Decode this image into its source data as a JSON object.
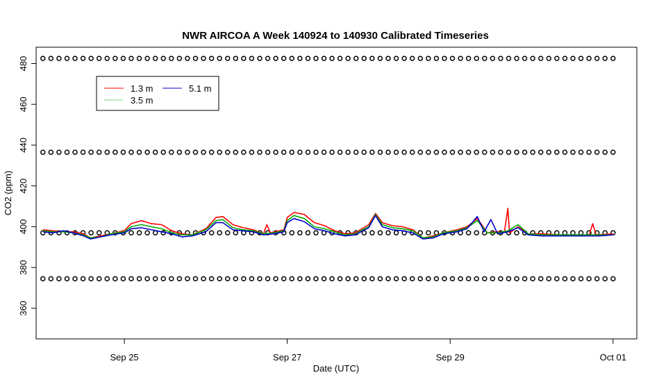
{
  "chart_data": {
    "type": "line",
    "title": "NWR AIRCOA A  Week 140924 to 140930  Calibrated Timeseries",
    "xlabel": "Date (UTC)",
    "ylabel": "CO2 (ppm)",
    "xlim": [
      "2014-09-23T22:00",
      "2014-10-01T07:00"
    ],
    "ylim": [
      345,
      488
    ],
    "x_ticks": [
      {
        "x": "2014-09-25",
        "label": "Sep 25"
      },
      {
        "x": "2014-09-27",
        "label": "Sep 27"
      },
      {
        "x": "2014-09-29",
        "label": "Sep 29"
      },
      {
        "x": "2014-10-01",
        "label": "Oct 01"
      }
    ],
    "y_ticks": [
      360,
      380,
      400,
      420,
      440,
      460,
      480
    ],
    "legend": {
      "placement": "top-left",
      "entries": [
        {
          "label": "1.3 m",
          "color": "#ff0000"
        },
        {
          "label": "5.1 m",
          "color": "#0000cc"
        },
        {
          "label": "3.5 m",
          "color": "#00aa00"
        }
      ]
    },
    "series": [
      {
        "name": "1.3 m",
        "color": "#ff0000",
        "points": [
          [
            "2014-09-24T00:00",
            398.5
          ],
          [
            "2014-09-24T03:00",
            398.0
          ],
          [
            "2014-09-24T06:00",
            397.5
          ],
          [
            "2014-09-24T09:00",
            397.5
          ],
          [
            "2014-09-24T12:00",
            396.5
          ],
          [
            "2014-09-24T14:00",
            394.5
          ],
          [
            "2014-09-24T17:00",
            395.5
          ],
          [
            "2014-09-24T20:00",
            396.5
          ],
          [
            "2014-09-25T00:00",
            398.0
          ],
          [
            "2014-09-25T02:00",
            401.5
          ],
          [
            "2014-09-25T05:00",
            403.0
          ],
          [
            "2014-09-25T08:00",
            401.5
          ],
          [
            "2014-09-25T11:00",
            401.0
          ],
          [
            "2014-09-25T14:00",
            398.0
          ],
          [
            "2014-09-25T17:00",
            396.5
          ],
          [
            "2014-09-25T20:00",
            396.0
          ],
          [
            "2014-09-26T00:00",
            399.0
          ],
          [
            "2014-09-26T03:00",
            404.5
          ],
          [
            "2014-09-26T05:00",
            405.0
          ],
          [
            "2014-09-26T08:00",
            401.0
          ],
          [
            "2014-09-26T11:00",
            399.5
          ],
          [
            "2014-09-26T14:00",
            398.5
          ],
          [
            "2014-09-26T17:00",
            396.5
          ],
          [
            "2014-09-26T18:00",
            401.0
          ],
          [
            "2014-09-26T19:00",
            397.0
          ],
          [
            "2014-09-26T23:00",
            398.5
          ],
          [
            "2014-09-27T00:00",
            404.5
          ],
          [
            "2014-09-27T02:00",
            407.0
          ],
          [
            "2014-09-27T05:00",
            406.0
          ],
          [
            "2014-09-27T08:00",
            402.0
          ],
          [
            "2014-09-27T11:00",
            400.5
          ],
          [
            "2014-09-27T14:00",
            398.0
          ],
          [
            "2014-09-27T17:00",
            396.5
          ],
          [
            "2014-09-27T20:00",
            397.0
          ],
          [
            "2014-09-28T00:00",
            401.0
          ],
          [
            "2014-09-28T02:00",
            406.5
          ],
          [
            "2014-09-28T04:00",
            402.0
          ],
          [
            "2014-09-28T07:00",
            400.5
          ],
          [
            "2014-09-28T10:00",
            400.0
          ],
          [
            "2014-09-28T13:00",
            398.5
          ],
          [
            "2014-09-28T16:00",
            394.5
          ],
          [
            "2014-09-28T19:00",
            395.5
          ],
          [
            "2014-09-28T22:00",
            397.0
          ],
          [
            "2014-09-29T02:00",
            398.5
          ],
          [
            "2014-09-29T05:00",
            400.0
          ],
          [
            "2014-09-29T08:00",
            404.0
          ],
          [
            "2014-09-29T11:00",
            397.0
          ],
          [
            "2014-09-29T14:00",
            397.5
          ],
          [
            "2014-09-29T16:00",
            397.5
          ],
          [
            "2014-09-29T17:00",
            409.0
          ],
          [
            "2014-09-29T17:30",
            397.0
          ],
          [
            "2014-09-29T20:00",
            400.0
          ],
          [
            "2014-09-29T23:00",
            396.5
          ],
          [
            "2014-09-30T03:00",
            396.5
          ],
          [
            "2014-09-30T08:00",
            396.0
          ],
          [
            "2014-09-30T13:00",
            396.0
          ],
          [
            "2014-09-30T17:00",
            396.0
          ],
          [
            "2014-09-30T18:00",
            401.5
          ],
          [
            "2014-09-30T19:00",
            396.0
          ],
          [
            "2014-10-01T00:00",
            396.5
          ]
        ]
      },
      {
        "name": "3.5 m",
        "color": "#00aa00",
        "points": [
          [
            "2014-09-24T00:00",
            398.0
          ],
          [
            "2014-09-24T03:00",
            397.5
          ],
          [
            "2014-09-24T06:00",
            397.5
          ],
          [
            "2014-09-24T09:00",
            397.0
          ],
          [
            "2014-09-24T12:00",
            396.0
          ],
          [
            "2014-09-24T14:00",
            394.5
          ],
          [
            "2014-09-24T17:00",
            395.0
          ],
          [
            "2014-09-24T20:00",
            396.5
          ],
          [
            "2014-09-25T00:00",
            397.5
          ],
          [
            "2014-09-25T02:00",
            400.0
          ],
          [
            "2014-09-25T05:00",
            401.0
          ],
          [
            "2014-09-25T08:00",
            400.0
          ],
          [
            "2014-09-25T11:00",
            399.0
          ],
          [
            "2014-09-25T14:00",
            397.0
          ],
          [
            "2014-09-25T17:00",
            396.0
          ],
          [
            "2014-09-25T20:00",
            396.0
          ],
          [
            "2014-09-26T00:00",
            398.5
          ],
          [
            "2014-09-26T03:00",
            403.0
          ],
          [
            "2014-09-26T05:00",
            403.5
          ],
          [
            "2014-09-26T08:00",
            399.5
          ],
          [
            "2014-09-26T11:00",
            398.5
          ],
          [
            "2014-09-26T14:00",
            398.0
          ],
          [
            "2014-09-26T17:00",
            396.5
          ],
          [
            "2014-09-26T20:00",
            397.0
          ],
          [
            "2014-09-26T23:00",
            398.0
          ],
          [
            "2014-09-27T00:00",
            403.0
          ],
          [
            "2014-09-27T02:00",
            405.5
          ],
          [
            "2014-09-27T05:00",
            404.0
          ],
          [
            "2014-09-27T08:00",
            400.0
          ],
          [
            "2014-09-27T11:00",
            399.0
          ],
          [
            "2014-09-27T14:00",
            397.5
          ],
          [
            "2014-09-27T17:00",
            396.0
          ],
          [
            "2014-09-27T20:00",
            396.5
          ],
          [
            "2014-09-28T00:00",
            400.0
          ],
          [
            "2014-09-28T02:00",
            406.0
          ],
          [
            "2014-09-28T04:00",
            401.0
          ],
          [
            "2014-09-28T07:00",
            399.5
          ],
          [
            "2014-09-28T10:00",
            399.0
          ],
          [
            "2014-09-28T13:00",
            398.0
          ],
          [
            "2014-09-28T16:00",
            394.5
          ],
          [
            "2014-09-28T19:00",
            395.0
          ],
          [
            "2014-09-28T22:00",
            397.0
          ],
          [
            "2014-09-29T02:00",
            398.0
          ],
          [
            "2014-09-29T05:00",
            399.5
          ],
          [
            "2014-09-29T08:00",
            403.0
          ],
          [
            "2014-09-29T11:00",
            397.0
          ],
          [
            "2014-09-29T14:00",
            397.0
          ],
          [
            "2014-09-29T17:00",
            398.0
          ],
          [
            "2014-09-29T20:00",
            401.0
          ],
          [
            "2014-09-29T23:00",
            396.5
          ],
          [
            "2014-09-30T03:00",
            396.0
          ],
          [
            "2014-09-30T08:00",
            396.0
          ],
          [
            "2014-09-30T13:00",
            396.0
          ],
          [
            "2014-09-30T17:00",
            396.0
          ],
          [
            "2014-09-30T20:00",
            396.0
          ],
          [
            "2014-10-01T00:00",
            396.0
          ]
        ]
      },
      {
        "name": "5.1 m",
        "color": "#0000cc",
        "points": [
          [
            "2014-09-24T00:00",
            397.5
          ],
          [
            "2014-09-24T03:00",
            397.0
          ],
          [
            "2014-09-24T06:00",
            398.0
          ],
          [
            "2014-09-24T09:00",
            397.0
          ],
          [
            "2014-09-24T12:00",
            395.5
          ],
          [
            "2014-09-24T14:00",
            394.0
          ],
          [
            "2014-09-24T17:00",
            395.0
          ],
          [
            "2014-09-24T20:00",
            396.0
          ],
          [
            "2014-09-25T00:00",
            397.0
          ],
          [
            "2014-09-25T02:00",
            399.0
          ],
          [
            "2014-09-25T05:00",
            399.5
          ],
          [
            "2014-09-25T08:00",
            398.5
          ],
          [
            "2014-09-25T11:00",
            397.5
          ],
          [
            "2014-09-25T14:00",
            396.5
          ],
          [
            "2014-09-25T17:00",
            395.0
          ],
          [
            "2014-09-25T20:00",
            395.5
          ],
          [
            "2014-09-26T00:00",
            397.5
          ],
          [
            "2014-09-26T03:00",
            402.0
          ],
          [
            "2014-09-26T05:00",
            402.0
          ],
          [
            "2014-09-26T08:00",
            398.5
          ],
          [
            "2014-09-26T11:00",
            398.0
          ],
          [
            "2014-09-26T14:00",
            397.5
          ],
          [
            "2014-09-26T17:00",
            396.0
          ],
          [
            "2014-09-26T20:00",
            396.5
          ],
          [
            "2014-09-26T23:00",
            397.5
          ],
          [
            "2014-09-27T00:00",
            402.0
          ],
          [
            "2014-09-27T02:00",
            404.0
          ],
          [
            "2014-09-27T05:00",
            402.5
          ],
          [
            "2014-09-27T08:00",
            399.0
          ],
          [
            "2014-09-27T11:00",
            398.0
          ],
          [
            "2014-09-27T14:00",
            396.5
          ],
          [
            "2014-09-27T17:00",
            395.5
          ],
          [
            "2014-09-27T20:00",
            396.0
          ],
          [
            "2014-09-28T00:00",
            399.5
          ],
          [
            "2014-09-28T02:00",
            405.5
          ],
          [
            "2014-09-28T04:00",
            400.0
          ],
          [
            "2014-09-28T07:00",
            398.5
          ],
          [
            "2014-09-28T10:00",
            398.0
          ],
          [
            "2014-09-28T13:00",
            397.0
          ],
          [
            "2014-09-28T16:00",
            394.0
          ],
          [
            "2014-09-28T19:00",
            394.5
          ],
          [
            "2014-09-28T22:00",
            396.5
          ],
          [
            "2014-09-29T02:00",
            397.5
          ],
          [
            "2014-09-29T05:00",
            399.0
          ],
          [
            "2014-09-29T08:00",
            405.0
          ],
          [
            "2014-09-29T10:00",
            397.5
          ],
          [
            "2014-09-29T12:00",
            403.5
          ],
          [
            "2014-09-29T14:00",
            396.5
          ],
          [
            "2014-09-29T17:00",
            397.5
          ],
          [
            "2014-09-29T20:00",
            399.5
          ],
          [
            "2014-09-29T23:00",
            396.0
          ],
          [
            "2014-09-30T03:00",
            395.5
          ],
          [
            "2014-09-30T08:00",
            395.5
          ],
          [
            "2014-09-30T13:00",
            395.5
          ],
          [
            "2014-09-30T17:00",
            395.5
          ],
          [
            "2014-09-30T20:00",
            395.5
          ],
          [
            "2014-10-01T00:00",
            396.0
          ]
        ]
      }
    ],
    "reference_points": {
      "marker": "open-circle",
      "x_start": "2014-09-24T00:00",
      "x_end": "2014-10-01T00:00",
      "count_per_level": 72,
      "levels": [
        482.5,
        436.5,
        397.0,
        374.5
      ]
    }
  }
}
